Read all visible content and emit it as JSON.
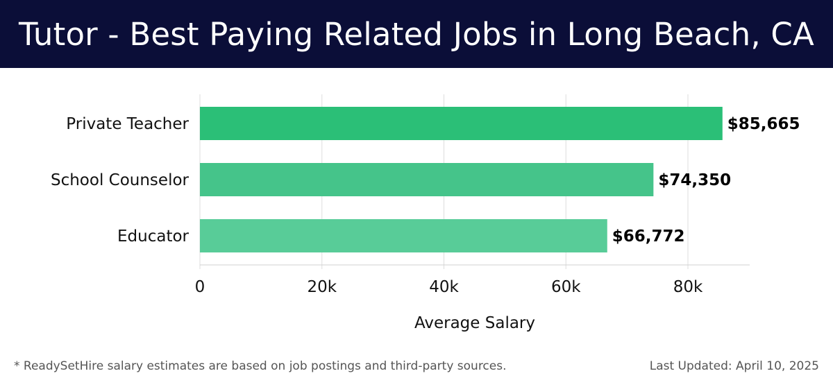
{
  "header": {
    "title": "Tutor - Best Paying Related Jobs in Long Beach, CA"
  },
  "chart_data": {
    "type": "bar",
    "orientation": "horizontal",
    "categories": [
      "Private Teacher",
      "School Counselor",
      "Educator"
    ],
    "values": [
      85665,
      74350,
      66772
    ],
    "value_labels": [
      "$85,665",
      "$74,350",
      "$66,772"
    ],
    "bar_colors": [
      "#2bbf77",
      "#45c48a",
      "#58cc98"
    ],
    "xlabel": "Average Salary",
    "ylabel": "",
    "xlim": [
      0,
      90000
    ],
    "xticks": [
      0,
      20000,
      40000,
      60000,
      80000
    ],
    "xtick_labels": [
      "0",
      "20k",
      "40k",
      "60k",
      "80k"
    ],
    "grid": true,
    "legend": "none"
  },
  "footer": {
    "note": "* ReadySetHire salary estimates are based on job postings and third-party sources.",
    "updated": "Last Updated: April 10, 2025"
  }
}
